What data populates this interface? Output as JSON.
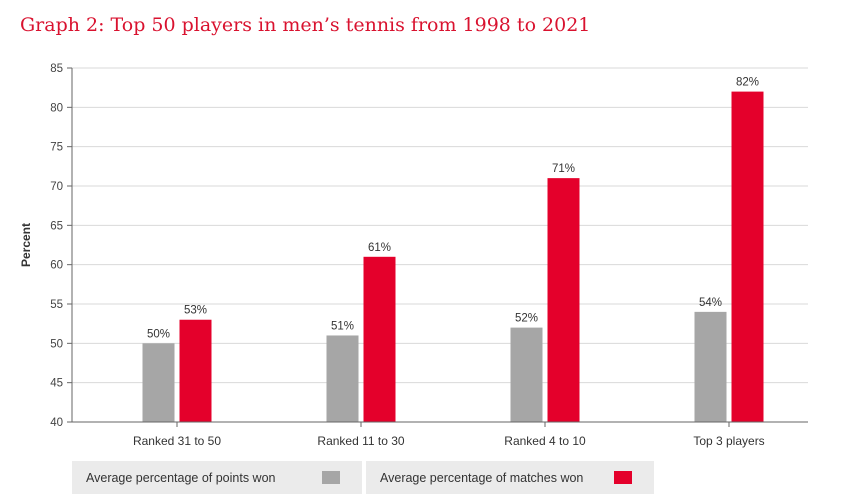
{
  "title": "Graph 2: Top 50 players in men’s tennis from 1998 to 2021",
  "chart_data": {
    "type": "bar",
    "ylabel": "Percent",
    "xlabel": "",
    "ylim": [
      40,
      85
    ],
    "yticks": [
      40,
      45,
      50,
      55,
      60,
      65,
      70,
      75,
      80,
      85
    ],
    "grid": true,
    "legend_position": "bottom",
    "categories": [
      "Ranked 31 to 50",
      "Ranked 11 to 30",
      "Ranked 4 to 10",
      "Top 3 players"
    ],
    "series": [
      {
        "name": "Average percentage of points won",
        "values": [
          50,
          51,
          52,
          54
        ],
        "labels": [
          "50%",
          "51%",
          "52%",
          "54%"
        ],
        "color": "#a6a6a6"
      },
      {
        "name": "Average percentage of matches won",
        "values": [
          53,
          61,
          71,
          82
        ],
        "labels": [
          "53%",
          "61%",
          "71%",
          "82%"
        ],
        "color": "#e4002b"
      }
    ]
  }
}
